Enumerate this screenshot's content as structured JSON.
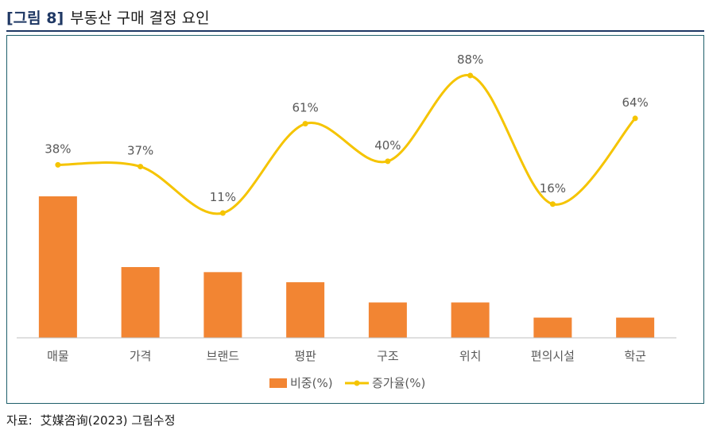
{
  "figure": {
    "label": "[그림 8]",
    "title": "부동산 구매 결정 요인"
  },
  "source": {
    "label": "자료:",
    "text": "艾媒咨询(2023) 그림수정"
  },
  "colors": {
    "bar": "#f28533",
    "line": "#f5c400",
    "title": "#1f3864",
    "axis": "#bfbfbf",
    "label": "#595959"
  },
  "chart_data": {
    "type": "bar+line",
    "categories": [
      "매물",
      "가격",
      "브랜드",
      "평판",
      "구조",
      "위치",
      "편의시설",
      "학군"
    ],
    "series": [
      {
        "name": "비중(%)",
        "type": "bar",
        "values": [
          28,
          14,
          13,
          11,
          7,
          7,
          4,
          4
        ]
      },
      {
        "name": "증가율(%)",
        "type": "line",
        "smooth": true,
        "values": [
          38,
          37,
          11,
          61,
          40,
          88,
          16,
          64
        ],
        "labels": [
          "38%",
          "37%",
          "11%",
          "61%",
          "40%",
          "88%",
          "16%",
          "64%"
        ]
      }
    ],
    "legend": {
      "position": "bottom",
      "entries": [
        "비중(%)",
        "증가율(%)"
      ]
    },
    "grid": false
  }
}
